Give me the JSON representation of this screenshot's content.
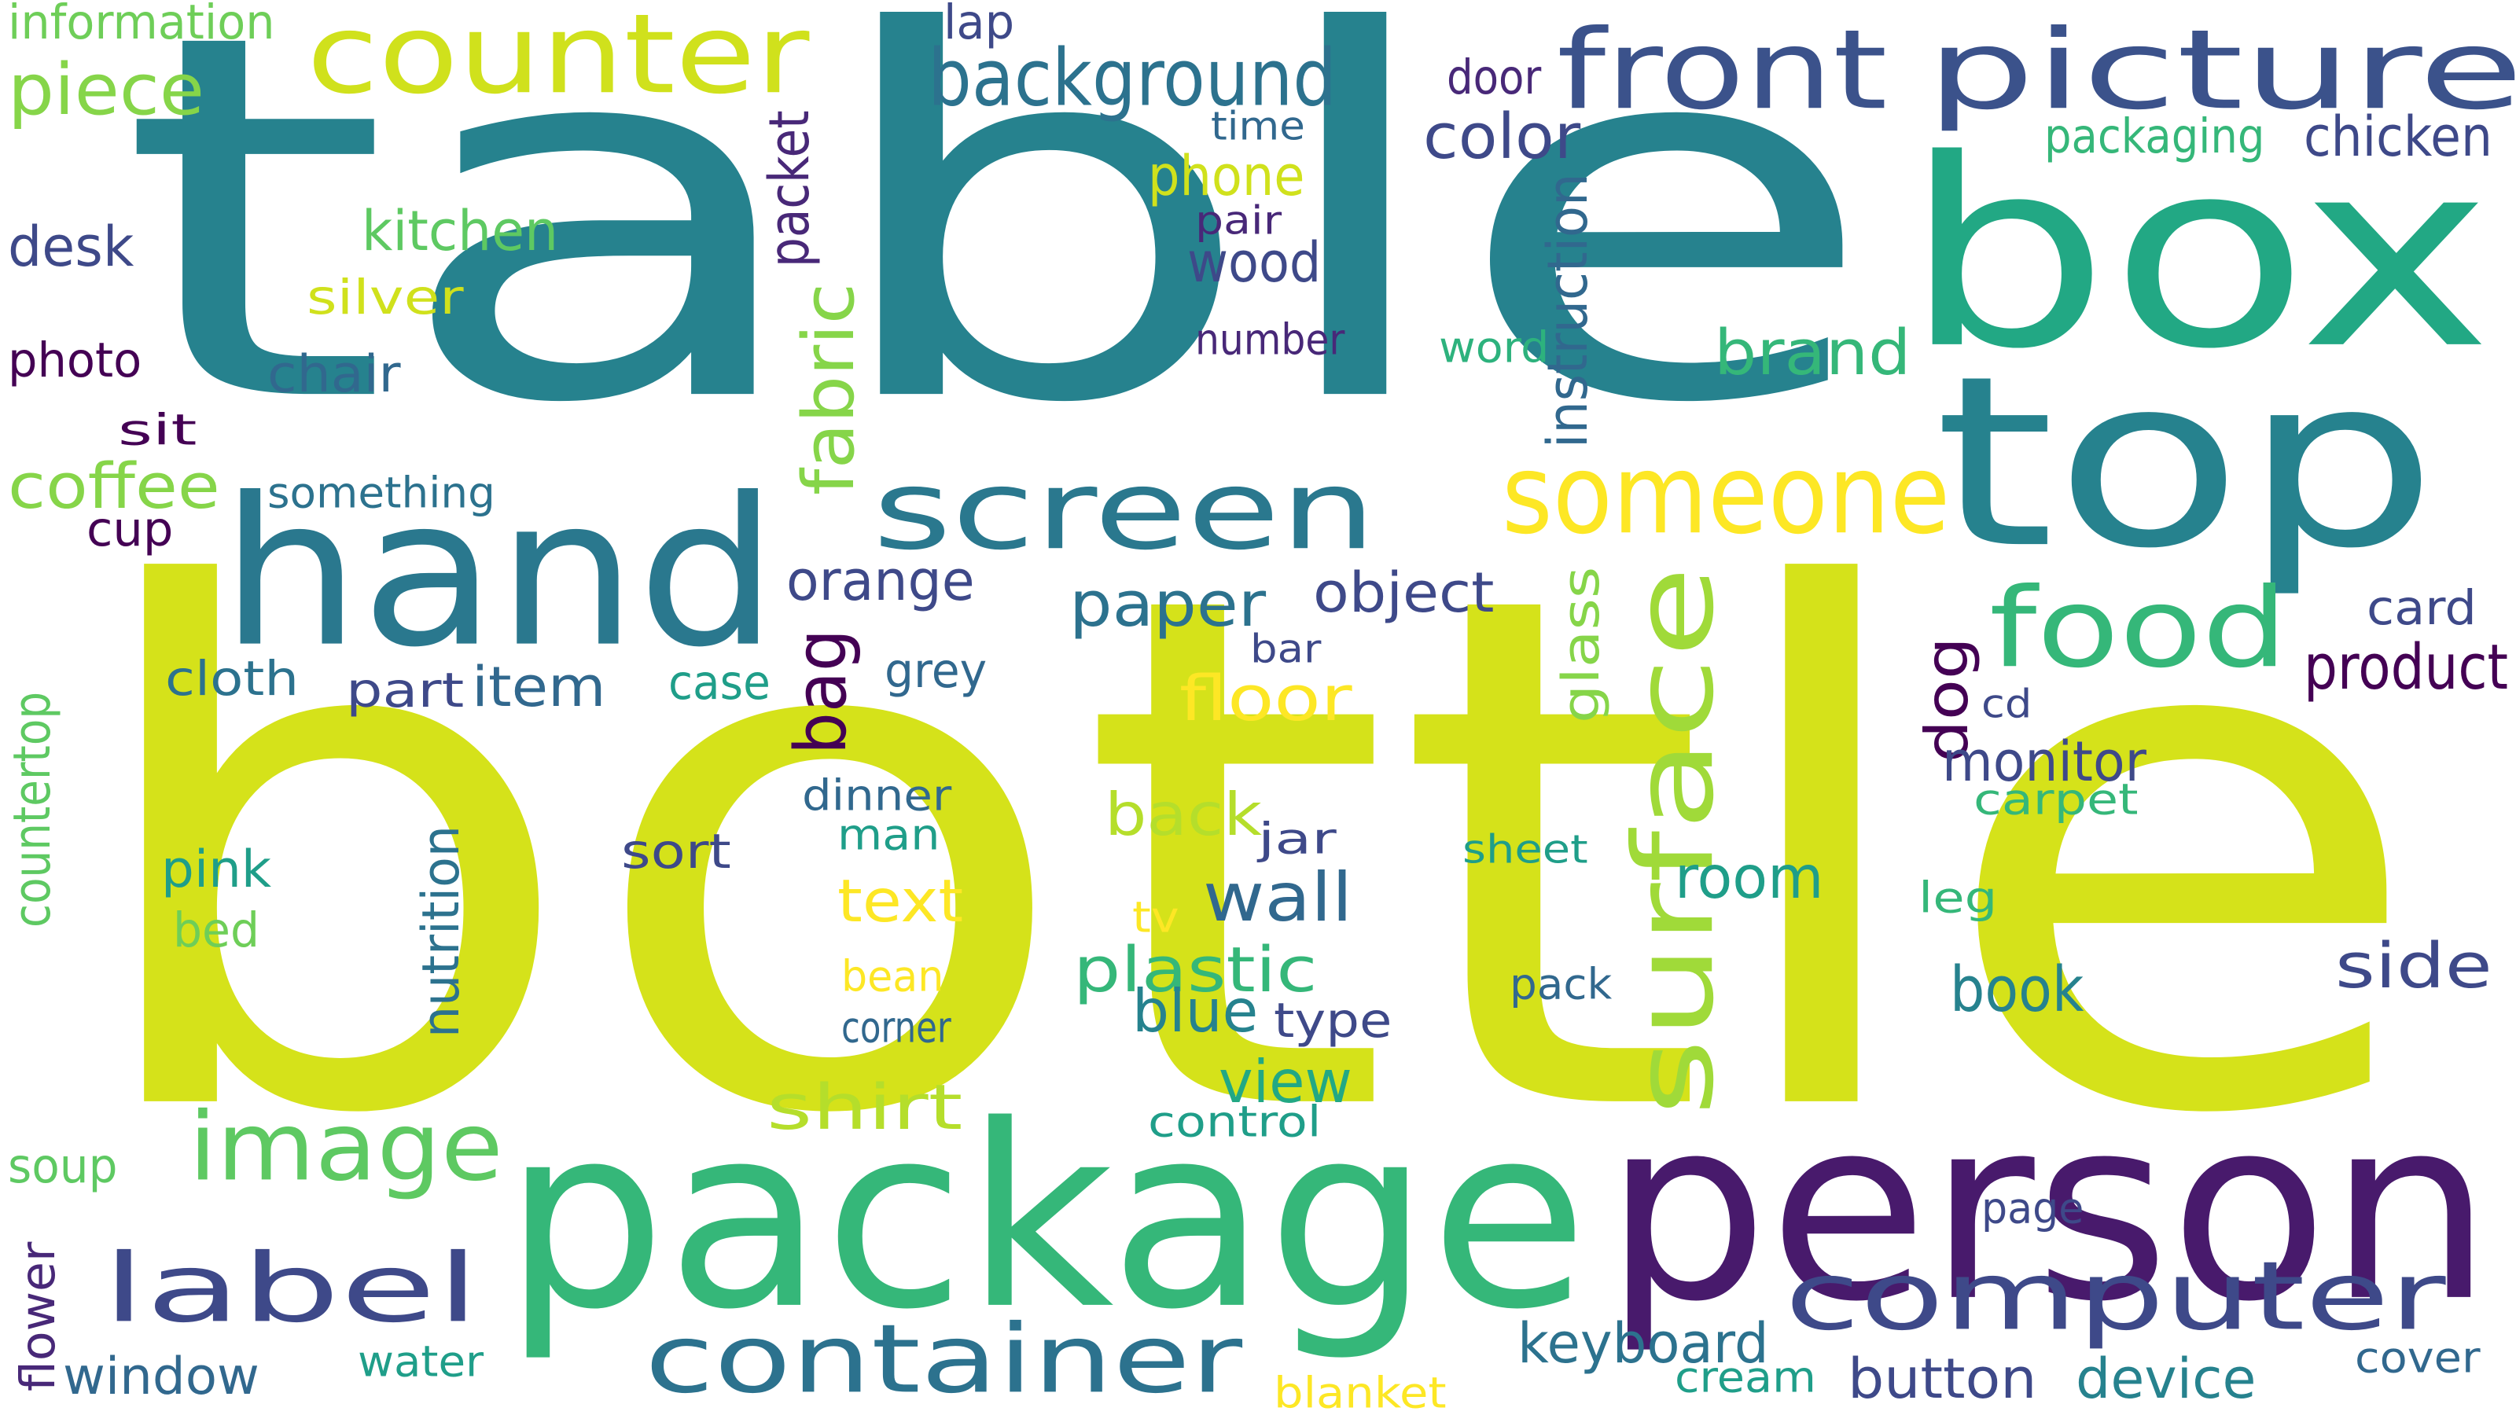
{
  "palette": {
    "purple": "#440154",
    "indigo": "#482878",
    "slate_blue": "#3e4989",
    "blue": "#31688e",
    "teal": "#26828e",
    "sea_green": "#1f9e89",
    "green": "#35b779",
    "light_green": "#6ece58",
    "lime": "#b5de2b",
    "yellow": "#fde725"
  },
  "words": [
    {
      "text": "table",
      "color": "#26828e",
      "vertical": false
    },
    {
      "text": "bottle",
      "color": "#d5e21a",
      "vertical": false
    },
    {
      "text": "box",
      "color": "#22a884",
      "vertical": false
    },
    {
      "text": "top",
      "color": "#26828e",
      "vertical": false
    },
    {
      "text": "person",
      "color": "#481a6c",
      "vertical": false
    },
    {
      "text": "package",
      "color": "#35b779",
      "vertical": false
    },
    {
      "text": "hand",
      "color": "#2a788e",
      "vertical": false
    },
    {
      "text": "counter",
      "color": "#d0e11c",
      "vertical": false
    },
    {
      "text": "picture",
      "color": "#3b528b",
      "vertical": false
    },
    {
      "text": "front",
      "color": "#3b528b",
      "vertical": false
    },
    {
      "text": "screen",
      "color": "#2a788e",
      "vertical": false
    },
    {
      "text": "someone",
      "color": "#fde725",
      "vertical": false
    },
    {
      "text": "surface",
      "color": "#a0da39",
      "vertical": true
    },
    {
      "text": "food",
      "color": "#35b779",
      "vertical": false
    },
    {
      "text": "image",
      "color": "#5ec962",
      "vertical": false
    },
    {
      "text": "label",
      "color": "#3e4989",
      "vertical": false
    },
    {
      "text": "computer",
      "color": "#3e4989",
      "vertical": false
    },
    {
      "text": "container",
      "color": "#2c728e",
      "vertical": false
    },
    {
      "text": "background",
      "color": "#2c728e",
      "vertical": false
    },
    {
      "text": "piece",
      "color": "#86d549",
      "vertical": false
    },
    {
      "text": "information",
      "color": "#6ece58",
      "vertical": false
    },
    {
      "text": "lap",
      "color": "#3e4989",
      "vertical": false
    },
    {
      "text": "door",
      "color": "#482878",
      "vertical": false
    },
    {
      "text": "time",
      "color": "#31688e",
      "vertical": false
    },
    {
      "text": "color",
      "color": "#3e4989",
      "vertical": false
    },
    {
      "text": "packaging",
      "color": "#35b779",
      "vertical": false
    },
    {
      "text": "chicken",
      "color": "#3e4989",
      "vertical": false
    },
    {
      "text": "phone",
      "color": "#d0e11c",
      "vertical": false
    },
    {
      "text": "pair",
      "color": "#482878",
      "vertical": false
    },
    {
      "text": "wood",
      "color": "#3e4989",
      "vertical": false
    },
    {
      "text": "kitchen",
      "color": "#5ec962",
      "vertical": false
    },
    {
      "text": "desk",
      "color": "#3e4989",
      "vertical": false
    },
    {
      "text": "silver",
      "color": "#d0e11c",
      "vertical": false
    },
    {
      "text": "packet",
      "color": "#482878",
      "vertical": true
    },
    {
      "text": "instruction",
      "color": "#31688e",
      "vertical": true
    },
    {
      "text": "number",
      "color": "#482878",
      "vertical": false
    },
    {
      "text": "word",
      "color": "#2db27d",
      "vertical": false
    },
    {
      "text": "brand",
      "color": "#35b779",
      "vertical": false
    },
    {
      "text": "photo",
      "color": "#440154",
      "vertical": false
    },
    {
      "text": "chair",
      "color": "#31688e",
      "vertical": false
    },
    {
      "text": "fabric",
      "color": "#86d549",
      "vertical": true
    },
    {
      "text": "sit",
      "color": "#440154",
      "vertical": false
    },
    {
      "text": "coffee",
      "color": "#86d549",
      "vertical": false
    },
    {
      "text": "something",
      "color": "#2c728e",
      "vertical": false
    },
    {
      "text": "cup",
      "color": "#440154",
      "vertical": false
    },
    {
      "text": "orange",
      "color": "#3e4989",
      "vertical": false
    },
    {
      "text": "paper",
      "color": "#2c728e",
      "vertical": false
    },
    {
      "text": "object",
      "color": "#3e4989",
      "vertical": false
    },
    {
      "text": "glass",
      "color": "#86d549",
      "vertical": true
    },
    {
      "text": "card",
      "color": "#3e4989",
      "vertical": false
    },
    {
      "text": "product",
      "color": "#440154",
      "vertical": false
    },
    {
      "text": "cloth",
      "color": "#2c728e",
      "vertical": false
    },
    {
      "text": "part",
      "color": "#3e4989",
      "vertical": false
    },
    {
      "text": "item",
      "color": "#31688e",
      "vertical": false
    },
    {
      "text": "case",
      "color": "#1f9e89",
      "vertical": false
    },
    {
      "text": "bag",
      "color": "#440154",
      "vertical": true
    },
    {
      "text": "grey",
      "color": "#31688e",
      "vertical": false
    },
    {
      "text": "floor",
      "color": "#fde725",
      "vertical": false
    },
    {
      "text": "bar",
      "color": "#3e4989",
      "vertical": false
    },
    {
      "text": "dog",
      "color": "#440154",
      "vertical": true
    },
    {
      "text": "cd",
      "color": "#3e4989",
      "vertical": false
    },
    {
      "text": "countertop",
      "color": "#5ec962",
      "vertical": true
    },
    {
      "text": "dinner",
      "color": "#31688e",
      "vertical": false
    },
    {
      "text": "monitor",
      "color": "#3e4989",
      "vertical": false
    },
    {
      "text": "carpet",
      "color": "#35b779",
      "vertical": false
    },
    {
      "text": "back",
      "color": "#b5de2b",
      "vertical": false
    },
    {
      "text": "man",
      "color": "#1f9e89",
      "vertical": false
    },
    {
      "text": "jar",
      "color": "#3e4989",
      "vertical": false
    },
    {
      "text": "sheet",
      "color": "#1f9e89",
      "vertical": false
    },
    {
      "text": "nutrition",
      "color": "#2c728e",
      "vertical": true
    },
    {
      "text": "sort",
      "color": "#3e4989",
      "vertical": false
    },
    {
      "text": "pink",
      "color": "#1f9e89",
      "vertical": false
    },
    {
      "text": "room",
      "color": "#1f9e89",
      "vertical": false
    },
    {
      "text": "text",
      "color": "#fde725",
      "vertical": false
    },
    {
      "text": "wall",
      "color": "#31688e",
      "vertical": false
    },
    {
      "text": "leg",
      "color": "#35b779",
      "vertical": false
    },
    {
      "text": "bed",
      "color": "#6ece58",
      "vertical": false
    },
    {
      "text": "tv",
      "color": "#fde725",
      "vertical": false
    },
    {
      "text": "plastic",
      "color": "#35b779",
      "vertical": false
    },
    {
      "text": "side",
      "color": "#3e4989",
      "vertical": false
    },
    {
      "text": "bean",
      "color": "#fde725",
      "vertical": false
    },
    {
      "text": "pack",
      "color": "#31688e",
      "vertical": false
    },
    {
      "text": "book",
      "color": "#26828e",
      "vertical": false
    },
    {
      "text": "blue",
      "color": "#26828e",
      "vertical": false
    },
    {
      "text": "corner",
      "color": "#31688e",
      "vertical": false
    },
    {
      "text": "type",
      "color": "#3e4989",
      "vertical": false
    },
    {
      "text": "view",
      "color": "#22a884",
      "vertical": false
    },
    {
      "text": "shirt",
      "color": "#b5de2b",
      "vertical": false
    },
    {
      "text": "control",
      "color": "#1f9e89",
      "vertical": false
    },
    {
      "text": "soup",
      "color": "#5ec962",
      "vertical": false
    },
    {
      "text": "page",
      "color": "#3e4989",
      "vertical": false
    },
    {
      "text": "flower",
      "color": "#482878",
      "vertical": true
    },
    {
      "text": "keyboard",
      "color": "#2c728e",
      "vertical": false
    },
    {
      "text": "cover",
      "color": "#31688e",
      "vertical": false
    },
    {
      "text": "window",
      "color": "#31688e",
      "vertical": false
    },
    {
      "text": "water",
      "color": "#1f9e89",
      "vertical": false
    },
    {
      "text": "cream",
      "color": "#1f9e89",
      "vertical": false
    },
    {
      "text": "button",
      "color": "#3e4989",
      "vertical": false
    },
    {
      "text": "device",
      "color": "#26828e",
      "vertical": false
    },
    {
      "text": "blanket",
      "color": "#fde725",
      "vertical": false
    }
  ]
}
